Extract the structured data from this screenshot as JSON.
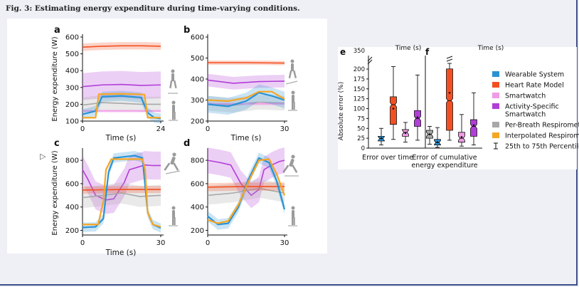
{
  "figure_title": "Fig. 3: Estimating energy expenditure during time-varying conditions.",
  "colors": {
    "wearable": "#2a93d5",
    "heart_rate": "#f25022",
    "smartwatch": "#f09be6",
    "activity_smartwatch": "#b23ed8",
    "per_breath": "#a8a8a8",
    "interpolated": "#f5a623"
  },
  "panels": {
    "a": {
      "letter": "a",
      "ylabel": "Energy expenditure (W)",
      "xlabel": "Time (s)",
      "x_ticks": [
        "0",
        "24"
      ],
      "y_ticks": [
        "100",
        "200",
        "300",
        "400",
        "500",
        "600"
      ]
    },
    "b": {
      "letter": "b",
      "xlabel": "Time (s)",
      "x_ticks": [
        "0",
        "30"
      ],
      "y_ticks": [
        "200",
        "300",
        "400",
        "500",
        "600"
      ]
    },
    "c": {
      "letter": "c",
      "ylabel": "Energy expenditure (W)",
      "xlabel": "Time (s)",
      "x_ticks": [
        "0",
        "30"
      ],
      "y_ticks": [
        "200",
        "400",
        "600",
        "800"
      ]
    },
    "d": {
      "letter": "d",
      "x_ticks": [
        "0",
        "30"
      ],
      "y_ticks": [
        "200",
        "400",
        "600",
        "800"
      ]
    },
    "e": {
      "letter": "e",
      "ylabel": "Absolute error (%)",
      "xlabel": "Error over time",
      "y_ticks": [
        "0",
        "25",
        "50",
        "75",
        "100",
        "125",
        "150",
        "175",
        "200",
        "350"
      ]
    },
    "f": {
      "letter": "f",
      "xlabel_line1": "Error of cumulative",
      "xlabel_line2": "energy expenditure"
    }
  },
  "clipped_text": {
    "b_top": "Time (s)",
    "f_top": "Time (s)",
    "c_bottom": "Time (s)"
  },
  "legend": [
    {
      "label": "Wearable System",
      "color": "#2a93d5"
    },
    {
      "label": "Heart Rate Model",
      "color": "#f25022"
    },
    {
      "label": "Smartwatch",
      "color": "#f09be6"
    },
    {
      "label": "Activity-Specific",
      "label2": "Smartwatch",
      "color": "#b23ed8"
    },
    {
      "label": "Per-Breath Respirometry",
      "color": "#a8a8a8"
    },
    {
      "label": "Interpolated Respirometry",
      "color": "#f5a623"
    },
    {
      "label": "25th to 75th Percentile",
      "color": "#222222"
    }
  ],
  "chart_data": [
    {
      "panel": "a",
      "type": "line",
      "xlabel": "Time (s)",
      "ylabel": "Energy expenditure (W)",
      "xlim": [
        0,
        24
      ],
      "ylim": [
        100,
        600
      ],
      "series": [
        {
          "name": "Heart Rate Model",
          "x": [
            0,
            6,
            12,
            18,
            24
          ],
          "y": [
            540,
            545,
            548,
            548,
            545
          ],
          "band": 22
        },
        {
          "name": "Activity-Specific Smartwatch",
          "x": [
            0,
            6,
            12,
            18,
            24
          ],
          "y": [
            305,
            315,
            318,
            312,
            315
          ],
          "band": 80
        },
        {
          "name": "Per-Breath Respirometry",
          "x": [
            0,
            6,
            12,
            18,
            24
          ],
          "y": [
            195,
            210,
            205,
            200,
            200
          ],
          "band": 45
        },
        {
          "name": "Smartwatch",
          "x": [
            0,
            24
          ],
          "y": [
            160,
            160
          ],
          "band": 10
        },
        {
          "name": "Wearable System",
          "x": [
            0,
            2,
            4,
            6,
            12,
            18,
            20,
            22,
            24
          ],
          "y": [
            140,
            150,
            160,
            245,
            250,
            240,
            150,
            120,
            115
          ],
          "band": 30
        },
        {
          "name": "Interpolated Respirometry",
          "x": [
            0,
            2,
            4,
            5,
            12,
            19,
            20,
            22,
            24
          ],
          "y": [
            120,
            120,
            120,
            260,
            262,
            258,
            120,
            120,
            120
          ],
          "band": 0
        }
      ]
    },
    {
      "panel": "b",
      "type": "line",
      "xlabel": "Time (s)",
      "xlim": [
        0,
        30
      ],
      "ylim": [
        200,
        600
      ],
      "series": [
        {
          "name": "Heart Rate Model",
          "x": [
            0,
            15,
            30
          ],
          "y": [
            478,
            478,
            476
          ],
          "band": 10
        },
        {
          "name": "Activity-Specific Smartwatch",
          "x": [
            0,
            10,
            20,
            30
          ],
          "y": [
            395,
            380,
            388,
            390
          ],
          "band": 30
        },
        {
          "name": "Per-Breath Respirometry",
          "x": [
            0,
            10,
            20,
            30
          ],
          "y": [
            285,
            275,
            290,
            285
          ],
          "band": 35
        },
        {
          "name": "Smartwatch",
          "x": [
            0,
            30
          ],
          "y": [
            282,
            282
          ],
          "band": 8
        },
        {
          "name": "Wearable System",
          "x": [
            0,
            8,
            15,
            20,
            25,
            30
          ],
          "y": [
            280,
            270,
            295,
            335,
            320,
            300
          ],
          "band": 40
        },
        {
          "name": "Interpolated Respirometry",
          "x": [
            0,
            8,
            15,
            20,
            25,
            30
          ],
          "y": [
            300,
            295,
            310,
            340,
            340,
            305
          ],
          "band": 0
        }
      ]
    },
    {
      "panel": "c",
      "type": "line",
      "xlabel": "Time (s)",
      "ylabel": "Energy expenditure (W)",
      "xlim": [
        0,
        30
      ],
      "ylim": [
        160,
        880
      ],
      "series": [
        {
          "name": "Heart Rate Model",
          "x": [
            0,
            15,
            30
          ],
          "y": [
            545,
            550,
            550
          ],
          "band": 30
        },
        {
          "name": "Activity-Specific Smartwatch",
          "x": [
            0,
            2,
            5,
            9,
            12,
            16,
            18,
            21,
            24,
            27,
            30
          ],
          "y": [
            720,
            640,
            500,
            460,
            470,
            610,
            720,
            740,
            760,
            755,
            755
          ],
          "band": 120
        },
        {
          "name": "Per-Breath Respirometry",
          "x": [
            0,
            8,
            15,
            22,
            30
          ],
          "y": [
            480,
            500,
            520,
            490,
            500
          ],
          "band": 90
        },
        {
          "name": "Wearable System",
          "x": [
            0,
            5,
            8,
            10,
            12,
            20,
            23,
            25,
            27,
            30
          ],
          "y": [
            225,
            230,
            300,
            700,
            820,
            840,
            820,
            350,
            250,
            220
          ],
          "band": 40
        },
        {
          "name": "Interpolated Respirometry",
          "x": [
            0,
            6,
            8,
            9,
            11,
            23,
            24,
            25,
            27,
            30
          ],
          "y": [
            250,
            250,
            450,
            720,
            810,
            810,
            720,
            350,
            250,
            230
          ],
          "band": 0
        }
      ]
    },
    {
      "panel": "d",
      "type": "line",
      "xlim": [
        0,
        30
      ],
      "ylim": [
        160,
        880
      ],
      "series": [
        {
          "name": "Heart Rate Model",
          "x": [
            0,
            15,
            30
          ],
          "y": [
            570,
            575,
            575
          ],
          "band": 35
        },
        {
          "name": "Activity-Specific Smartwatch",
          "x": [
            0,
            5,
            9,
            13,
            17,
            20,
            22,
            25,
            28,
            30
          ],
          "y": [
            800,
            780,
            760,
            600,
            500,
            550,
            720,
            760,
            790,
            800
          ],
          "band": 110
        },
        {
          "name": "Per-Breath Respirometry",
          "x": [
            0,
            10,
            20,
            30
          ],
          "y": [
            500,
            520,
            560,
            520
          ],
          "band": 80
        },
        {
          "name": "Wearable System",
          "x": [
            0,
            4,
            8,
            12,
            16,
            20,
            24,
            27,
            30
          ],
          "y": [
            320,
            250,
            260,
            400,
            640,
            820,
            780,
            620,
            380
          ],
          "band": 45
        },
        {
          "name": "Interpolated Respirometry",
          "x": [
            0,
            4,
            8,
            12,
            16,
            20,
            24,
            27,
            30
          ],
          "y": [
            290,
            260,
            280,
            420,
            620,
            800,
            810,
            680,
            500
          ],
          "band": 0
        }
      ]
    },
    {
      "panel": "e",
      "type": "box",
      "xlabel": "Error over time",
      "ylabel": "Absolute error (%)",
      "ylim": [
        0,
        350
      ],
      "boxes": [
        {
          "name": "Wearable System",
          "min": 8,
          "q1": 18,
          "median": 24,
          "q3": 30,
          "max": 50,
          "mean": 25
        },
        {
          "name": "Heart Rate Model",
          "min": 22,
          "q1": 60,
          "median": 110,
          "q3": 130,
          "max": 265,
          "mean": 100
        },
        {
          "name": "Smartwatch",
          "min": 15,
          "q1": 30,
          "median": 40,
          "q3": 47,
          "max": 65,
          "mean": 38
        },
        {
          "name": "Activity-Specific Smartwatch",
          "min": 20,
          "q1": 55,
          "median": 75,
          "q3": 95,
          "max": 185,
          "mean": 78
        },
        {
          "name": "Per-Breath Respirometry",
          "min": 10,
          "q1": 25,
          "median": 35,
          "q3": 45,
          "max": 55,
          "mean": 35
        }
      ]
    },
    {
      "panel": "f",
      "type": "box",
      "xlabel": "Error of cumulative energy expenditure",
      "ylim": [
        0,
        350
      ],
      "boxes": [
        {
          "name": "Wearable System",
          "min": 2,
          "q1": 8,
          "median": 14,
          "q3": 22,
          "max": 52,
          "mean": 15
        },
        {
          "name": "Heart Rate Model",
          "min": 20,
          "q1": 45,
          "median": 120,
          "q3": 205,
          "max": 350,
          "mean": 140
        },
        {
          "name": "Smartwatch",
          "min": 5,
          "q1": 15,
          "median": 25,
          "q3": 40,
          "max": 85,
          "mean": 28
        },
        {
          "name": "Activity-Specific Smartwatch",
          "min": 8,
          "q1": 30,
          "median": 55,
          "q3": 72,
          "max": 140,
          "mean": 58
        }
      ]
    }
  ]
}
